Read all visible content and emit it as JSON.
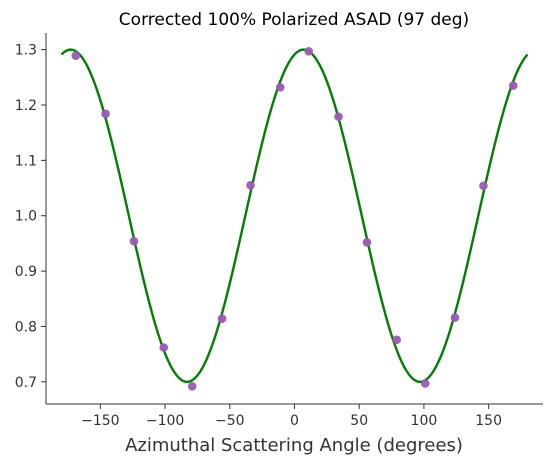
{
  "chart_data": {
    "type": "scatter",
    "title": "Corrected 100% Polarized ASAD (97 deg)",
    "xlabel": "Azimuthal Scattering Angle (degrees)",
    "ylabel": "",
    "xlim": [
      -192,
      192
    ],
    "ylim": [
      0.66,
      1.33
    ],
    "xticks": [
      -150,
      -100,
      -50,
      0,
      50,
      100,
      150
    ],
    "xtick_labels": [
      "−150",
      "−100",
      "−50",
      "0",
      "50",
      "100",
      "150"
    ],
    "yticks": [
      0.7,
      0.8,
      0.9,
      1.0,
      1.1,
      1.2,
      1.3
    ],
    "ytick_labels": [
      "0.7",
      "0.8",
      "0.9",
      "1.0",
      "1.1",
      "1.2",
      "1.3"
    ],
    "grid": false,
    "series": [
      {
        "kind": "points",
        "color": "#9b59b6",
        "x": [
          -169,
          -146,
          -124,
          -101,
          -79,
          -56,
          -34,
          -11,
          11,
          34,
          56,
          79,
          101,
          124,
          146,
          169
        ],
        "y": [
          1.289,
          1.184,
          0.954,
          0.762,
          0.692,
          0.814,
          1.055,
          1.232,
          1.297,
          1.179,
          0.952,
          0.776,
          0.697,
          0.816,
          1.054,
          1.235
        ]
      },
      {
        "kind": "fit-curve",
        "color": "#007f00",
        "model": "offset + amplitude * cos(2 * (x - phase_deg))",
        "offset": 1.0,
        "amplitude": 0.3,
        "phase_deg": 7,
        "x_range": [
          -180,
          180
        ]
      }
    ]
  }
}
